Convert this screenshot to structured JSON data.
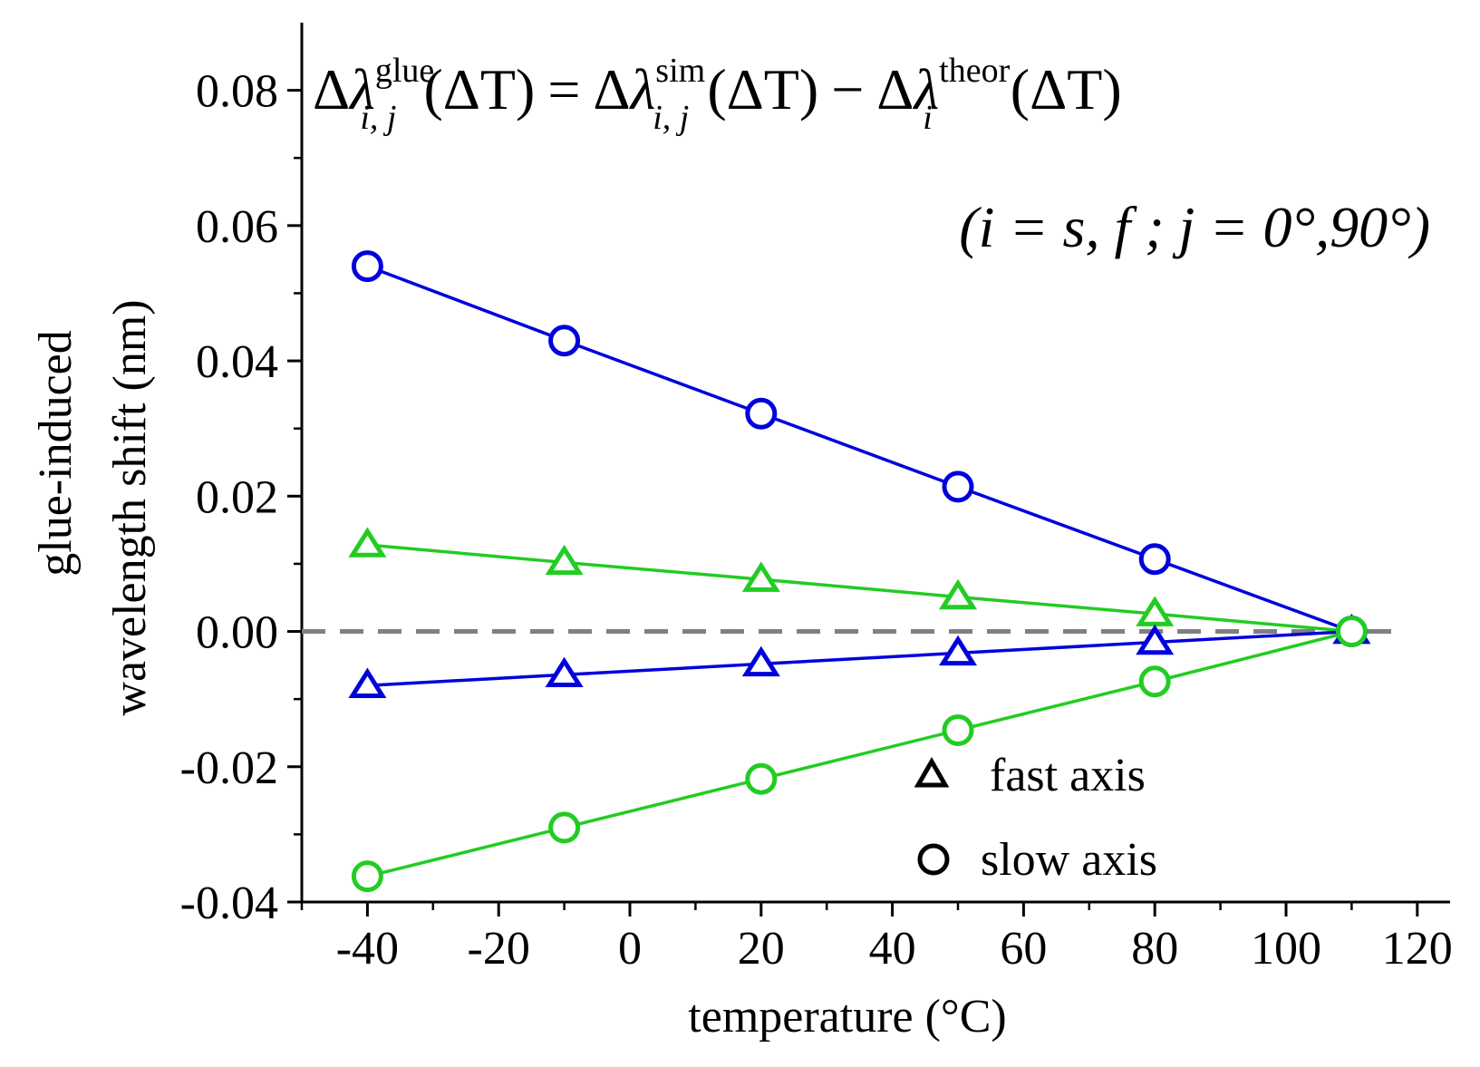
{
  "chart_data": {
    "type": "line",
    "xlabel": "temperature (°C)",
    "ylabel_line1": "glue-induced",
    "ylabel_line2": "wavelength shift (nm)",
    "xlim": [
      -50,
      125
    ],
    "ylim": [
      -0.04,
      0.09
    ],
    "x_ticks": [
      -40,
      -20,
      0,
      20,
      40,
      60,
      80,
      100,
      120
    ],
    "x_tick_labels": [
      "-40",
      "-20",
      "0",
      "20",
      "40",
      "60",
      "80",
      "100",
      "120"
    ],
    "y_ticks": [
      -0.04,
      -0.02,
      0.0,
      0.02,
      0.04,
      0.06,
      0.08
    ],
    "y_tick_labels": [
      "-0.04",
      "-0.02",
      "0.00",
      "0.02",
      "0.04",
      "0.06",
      "0.08"
    ],
    "reference_line": {
      "y": 0.0,
      "style": "dashed",
      "color": "#808080"
    },
    "x": [
      -40,
      -10,
      20,
      50,
      80,
      110
    ],
    "series": [
      {
        "name": "slow axis, j=0° (blue)",
        "marker": "circle",
        "color": "#0000dd",
        "values": [
          0.054,
          0.043,
          0.0322,
          0.0214,
          0.0107,
          0.0
        ]
      },
      {
        "name": "fast axis, j=0° (green)",
        "marker": "triangle",
        "color": "#22cc22",
        "values": [
          0.0128,
          0.0102,
          0.0077,
          0.0051,
          0.0026,
          0.0
        ]
      },
      {
        "name": "fast axis, j=90° (blue)",
        "marker": "triangle",
        "color": "#0000dd",
        "values": [
          -0.008,
          -0.0064,
          -0.0048,
          -0.0032,
          -0.0016,
          0.0
        ]
      },
      {
        "name": "slow axis, j=90° (green)",
        "marker": "circle",
        "color": "#22cc22",
        "values": [
          -0.0362,
          -0.029,
          -0.0218,
          -0.0146,
          -0.0074,
          0.0
        ]
      }
    ],
    "legend": [
      {
        "marker": "triangle",
        "label": "fast axis"
      },
      {
        "marker": "circle",
        "label": "slow axis"
      }
    ],
    "annotation": {
      "formula": {
        "delta": "Δ",
        "lambda": "λ",
        "sup_glue": "glue",
        "sup_sim": "sim",
        "sup_theor": "theor",
        "sub_ij": "i, j",
        "sub_i": "i",
        "dT": "(ΔT)",
        "eq": "=",
        "minus": "−"
      },
      "condition": "(i = s, f ;  j = 0°,90°)"
    }
  }
}
